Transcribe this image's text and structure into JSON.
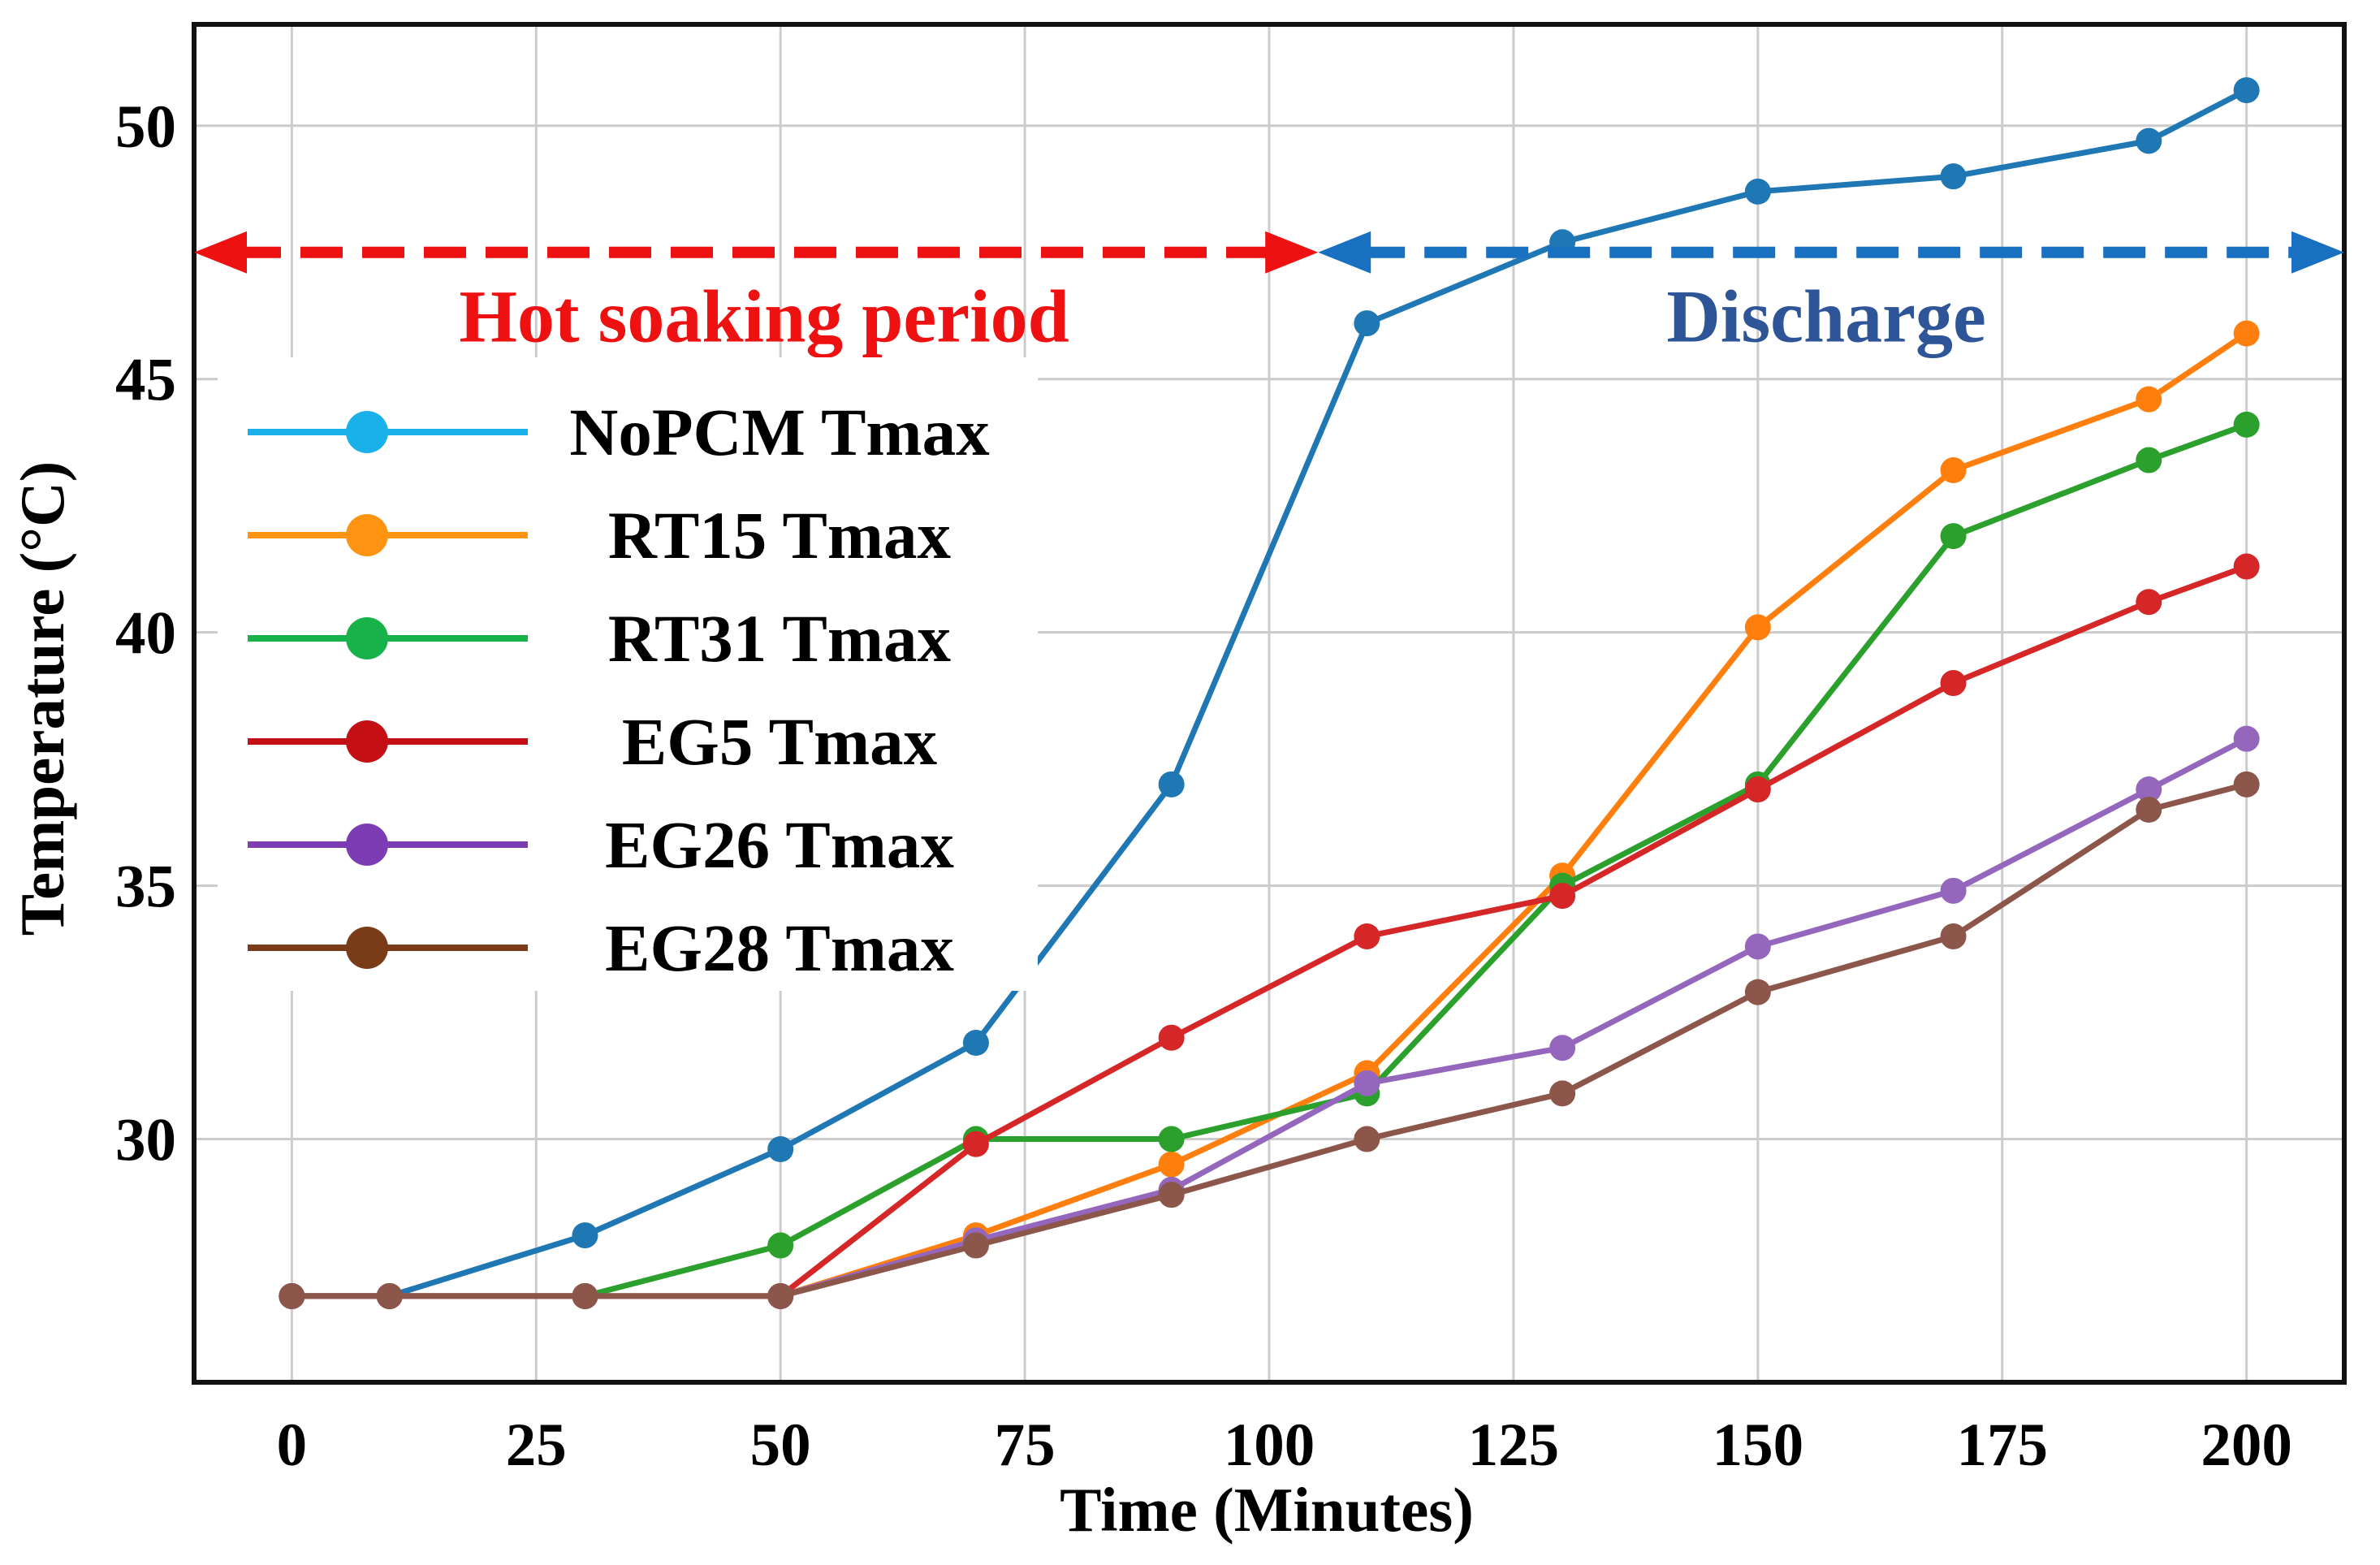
{
  "chart_data": {
    "type": "line",
    "xlabel": "Time (Minutes)",
    "ylabel": "Temperature (°C)",
    "xlim": [
      -10,
      210
    ],
    "ylim": [
      25.2,
      52
    ],
    "xticks": [
      0,
      25,
      50,
      75,
      100,
      125,
      150,
      175,
      200
    ],
    "yticks": [
      30,
      35,
      40,
      45,
      50
    ],
    "grid": true,
    "legend_position": "left",
    "series": [
      {
        "name": "NoPCM Tmax",
        "color": "#1f77b4",
        "legend_color": "#1ab0ea",
        "x": [
          0,
          10,
          30,
          50,
          70,
          90,
          110,
          130,
          150,
          170,
          190,
          200
        ],
        "y": [
          26.9,
          26.9,
          28.1,
          29.8,
          31.9,
          37.0,
          46.1,
          47.7,
          48.7,
          49.0,
          49.7,
          50.7
        ]
      },
      {
        "name": "RT15 Tmax",
        "color": "#ff7f0e",
        "legend_color": "#ff9412",
        "x": [
          0,
          10,
          30,
          50,
          70,
          90,
          110,
          130,
          150,
          170,
          190,
          200
        ],
        "y": [
          26.9,
          26.9,
          26.9,
          26.9,
          28.1,
          29.5,
          31.3,
          35.2,
          40.1,
          43.2,
          44.6,
          45.9
        ]
      },
      {
        "name": "RT31 Tmax",
        "color": "#2ca02c",
        "legend_color": "#18b24a",
        "x": [
          0,
          10,
          30,
          50,
          70,
          90,
          110,
          130,
          150,
          170,
          190,
          200
        ],
        "y": [
          26.9,
          26.9,
          26.9,
          27.9,
          30.0,
          30.0,
          30.9,
          35.0,
          37.0,
          41.9,
          43.4,
          44.1
        ]
      },
      {
        "name": "EG5 Tmax",
        "color": "#d62728",
        "legend_color": "#c40f15",
        "x": [
          0,
          10,
          30,
          50,
          70,
          90,
          110,
          130,
          150,
          170,
          190,
          200
        ],
        "y": [
          26.9,
          26.9,
          26.9,
          26.9,
          29.9,
          32.0,
          34.0,
          34.8,
          36.9,
          39.0,
          40.6,
          41.3
        ]
      },
      {
        "name": "EG26 Tmax",
        "color": "#9467bd",
        "legend_color": "#7c3cb4",
        "x": [
          0,
          10,
          30,
          50,
          70,
          90,
          110,
          130,
          150,
          170,
          190,
          200
        ],
        "y": [
          26.9,
          26.9,
          26.9,
          26.9,
          28.0,
          29.0,
          31.1,
          31.8,
          33.8,
          34.9,
          36.9,
          37.9
        ]
      },
      {
        "name": "EG28 Tmax",
        "color": "#8c564b",
        "legend_color": "#7a3c18",
        "x": [
          0,
          10,
          30,
          50,
          70,
          90,
          110,
          130,
          150,
          170,
          190,
          200
        ],
        "y": [
          26.9,
          26.9,
          26.9,
          26.9,
          27.9,
          28.9,
          30.0,
          30.9,
          32.9,
          34.0,
          36.5,
          37.0
        ]
      }
    ],
    "annotations": [
      {
        "text": "Hot soaking period",
        "color": "#ee1111",
        "x_start": -10,
        "x_end": 105
      },
      {
        "text": "Discharge",
        "color": "#1a70c0",
        "text_color": "#2e5598",
        "x_start": 105,
        "x_end": 210
      }
    ]
  }
}
